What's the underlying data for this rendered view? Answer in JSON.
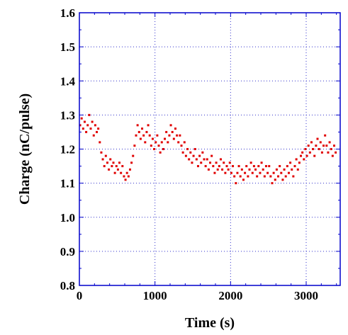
{
  "chart_data": {
    "type": "scatter",
    "title": "",
    "xlabel": "Time (s)",
    "ylabel": "Charge (nC/pulse)",
    "xlim": [
      0,
      3450
    ],
    "ylim": [
      0.8,
      1.6
    ],
    "x_ticks": [
      0,
      1000,
      2000,
      3000
    ],
    "x_tick_labels": [
      "0",
      "1000",
      "2000",
      "3000"
    ],
    "y_ticks": [
      0.8,
      0.9,
      1.0,
      1.1,
      1.2,
      1.3,
      1.4,
      1.5,
      1.6
    ],
    "y_tick_labels": [
      "0.8",
      "0.9",
      "1.0",
      "1.1",
      "1.2",
      "1.3",
      "1.4",
      "1.5",
      "1.6"
    ],
    "grid": true,
    "marker_color": "#e00000",
    "frame_color": "#0000cc",
    "grid_color": "#3333cc",
    "series": [
      {
        "points": [
          [
            10,
            1.27
          ],
          [
            30,
            1.29
          ],
          [
            50,
            1.26
          ],
          [
            70,
            1.28
          ],
          [
            90,
            1.25
          ],
          [
            110,
            1.27
          ],
          [
            130,
            1.3
          ],
          [
            150,
            1.26
          ],
          [
            170,
            1.28
          ],
          [
            190,
            1.24
          ],
          [
            210,
            1.27
          ],
          [
            230,
            1.25
          ],
          [
            250,
            1.26
          ],
          [
            270,
            1.22
          ],
          [
            290,
            1.19
          ],
          [
            310,
            1.17
          ],
          [
            330,
            1.15
          ],
          [
            350,
            1.18
          ],
          [
            370,
            1.16
          ],
          [
            390,
            1.14
          ],
          [
            410,
            1.17
          ],
          [
            430,
            1.15
          ],
          [
            450,
            1.16
          ],
          [
            470,
            1.13
          ],
          [
            490,
            1.15
          ],
          [
            510,
            1.14
          ],
          [
            530,
            1.16
          ],
          [
            550,
            1.13
          ],
          [
            570,
            1.15
          ],
          [
            590,
            1.12
          ],
          [
            610,
            1.11
          ],
          [
            630,
            1.13
          ],
          [
            650,
            1.12
          ],
          [
            670,
            1.14
          ],
          [
            690,
            1.16
          ],
          [
            710,
            1.18
          ],
          [
            730,
            1.21
          ],
          [
            750,
            1.24
          ],
          [
            770,
            1.27
          ],
          [
            790,
            1.25
          ],
          [
            810,
            1.23
          ],
          [
            830,
            1.26
          ],
          [
            850,
            1.24
          ],
          [
            870,
            1.22
          ],
          [
            890,
            1.25
          ],
          [
            910,
            1.27
          ],
          [
            930,
            1.24
          ],
          [
            950,
            1.21
          ],
          [
            970,
            1.23
          ],
          [
            990,
            1.2
          ],
          [
            1010,
            1.22
          ],
          [
            1030,
            1.24
          ],
          [
            1050,
            1.21
          ],
          [
            1070,
            1.19
          ],
          [
            1090,
            1.22
          ],
          [
            1110,
            1.2
          ],
          [
            1130,
            1.23
          ],
          [
            1150,
            1.25
          ],
          [
            1170,
            1.22
          ],
          [
            1190,
            1.24
          ],
          [
            1210,
            1.27
          ],
          [
            1230,
            1.25
          ],
          [
            1250,
            1.23
          ],
          [
            1270,
            1.26
          ],
          [
            1290,
            1.24
          ],
          [
            1310,
            1.22
          ],
          [
            1330,
            1.24
          ],
          [
            1350,
            1.21
          ],
          [
            1370,
            1.19
          ],
          [
            1390,
            1.22
          ],
          [
            1410,
            1.18
          ],
          [
            1430,
            1.2
          ],
          [
            1450,
            1.17
          ],
          [
            1470,
            1.19
          ],
          [
            1490,
            1.16
          ],
          [
            1510,
            1.18
          ],
          [
            1530,
            1.2
          ],
          [
            1550,
            1.17
          ],
          [
            1570,
            1.15
          ],
          [
            1590,
            1.18
          ],
          [
            1610,
            1.16
          ],
          [
            1630,
            1.19
          ],
          [
            1650,
            1.17
          ],
          [
            1670,
            1.15
          ],
          [
            1690,
            1.17
          ],
          [
            1710,
            1.14
          ],
          [
            1730,
            1.16
          ],
          [
            1750,
            1.18
          ],
          [
            1770,
            1.15
          ],
          [
            1790,
            1.13
          ],
          [
            1810,
            1.16
          ],
          [
            1830,
            1.14
          ],
          [
            1850,
            1.15
          ],
          [
            1870,
            1.17
          ],
          [
            1890,
            1.14
          ],
          [
            1910,
            1.16
          ],
          [
            1930,
            1.13
          ],
          [
            1950,
            1.15
          ],
          [
            1970,
            1.14
          ],
          [
            1990,
            1.16
          ],
          [
            2010,
            1.13
          ],
          [
            2030,
            1.15
          ],
          [
            2050,
            1.12
          ],
          [
            2070,
            1.1
          ],
          [
            2090,
            1.13
          ],
          [
            2110,
            1.15
          ],
          [
            2130,
            1.12
          ],
          [
            2150,
            1.14
          ],
          [
            2170,
            1.11
          ],
          [
            2190,
            1.13
          ],
          [
            2210,
            1.15
          ],
          [
            2230,
            1.12
          ],
          [
            2250,
            1.14
          ],
          [
            2270,
            1.16
          ],
          [
            2290,
            1.13
          ],
          [
            2310,
            1.15
          ],
          [
            2330,
            1.14
          ],
          [
            2350,
            1.12
          ],
          [
            2370,
            1.15
          ],
          [
            2390,
            1.13
          ],
          [
            2410,
            1.16
          ],
          [
            2430,
            1.14
          ],
          [
            2450,
            1.12
          ],
          [
            2470,
            1.15
          ],
          [
            2490,
            1.13
          ],
          [
            2510,
            1.15
          ],
          [
            2530,
            1.12
          ],
          [
            2550,
            1.1
          ],
          [
            2570,
            1.13
          ],
          [
            2590,
            1.11
          ],
          [
            2610,
            1.14
          ],
          [
            2630,
            1.12
          ],
          [
            2650,
            1.15
          ],
          [
            2670,
            1.13
          ],
          [
            2690,
            1.11
          ],
          [
            2710,
            1.14
          ],
          [
            2730,
            1.12
          ],
          [
            2750,
            1.15
          ],
          [
            2770,
            1.13
          ],
          [
            2790,
            1.16
          ],
          [
            2810,
            1.14
          ],
          [
            2830,
            1.12
          ],
          [
            2850,
            1.15
          ],
          [
            2870,
            1.17
          ],
          [
            2890,
            1.14
          ],
          [
            2910,
            1.16
          ],
          [
            2930,
            1.18
          ],
          [
            2950,
            1.19
          ],
          [
            2970,
            1.17
          ],
          [
            2990,
            1.2
          ],
          [
            3010,
            1.18
          ],
          [
            3030,
            1.21
          ],
          [
            3050,
            1.19
          ],
          [
            3070,
            1.22
          ],
          [
            3090,
            1.2
          ],
          [
            3110,
            1.18
          ],
          [
            3130,
            1.21
          ],
          [
            3150,
            1.23
          ],
          [
            3170,
            1.2
          ],
          [
            3190,
            1.22
          ],
          [
            3210,
            1.19
          ],
          [
            3230,
            1.21
          ],
          [
            3250,
            1.24
          ],
          [
            3270,
            1.21
          ],
          [
            3290,
            1.19
          ],
          [
            3310,
            1.22
          ],
          [
            3330,
            1.2
          ],
          [
            3350,
            1.18
          ],
          [
            3370,
            1.21
          ],
          [
            3390,
            1.19
          ]
        ]
      }
    ]
  }
}
